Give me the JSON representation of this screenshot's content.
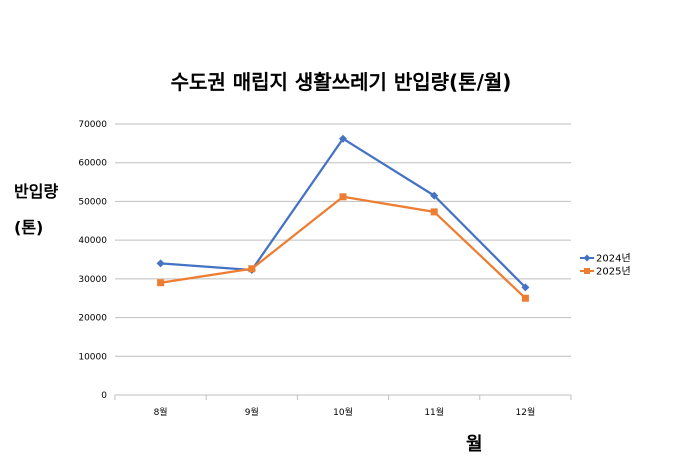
{
  "chart_data": {
    "type": "line",
    "title": "수도권 매립지 생활쓰레기 반입량(톤/월)",
    "ylabel_lines": [
      "반입량",
      "(톤)"
    ],
    "xlabel": "월",
    "categories": [
      "8월",
      "9월",
      "10월",
      "11월",
      "12월"
    ],
    "ylim": [
      0,
      70000
    ],
    "yticks": [
      "0",
      "10000",
      "20000",
      "30000",
      "40000",
      "50000",
      "60000",
      "70000"
    ],
    "grid": true,
    "legend_position": "right",
    "series": [
      {
        "name": "2024년",
        "color": "#4472C4",
        "marker": "diamond",
        "values": [
          34000,
          32300,
          66200,
          51500,
          27800
        ]
      },
      {
        "name": "2025년",
        "color": "#ED7D31",
        "marker": "square",
        "values": [
          29000,
          32600,
          51200,
          47300,
          25000
        ]
      }
    ]
  }
}
